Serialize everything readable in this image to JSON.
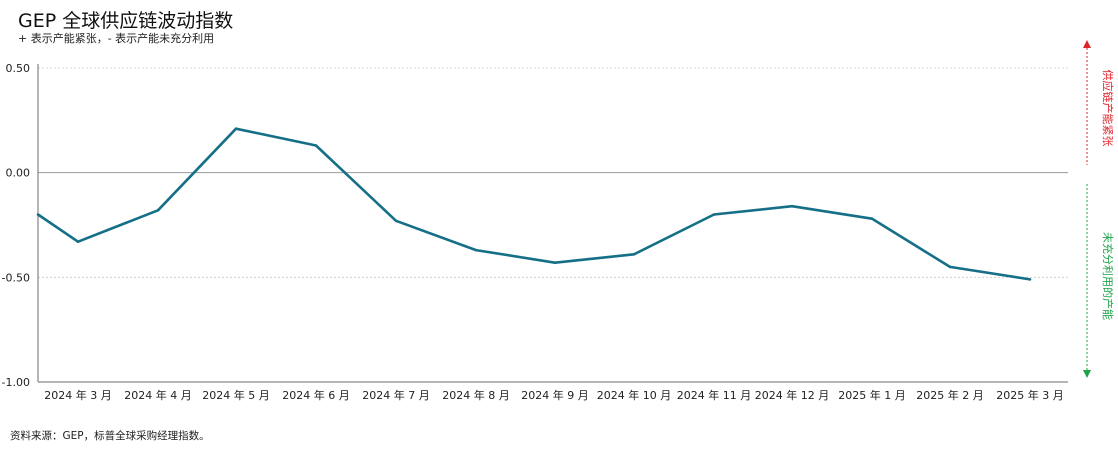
{
  "chart_data": {
    "type": "line",
    "title": "GEP 全球供应链波动指数",
    "subtitle": "+ 表示产能紧张，- 表示产能未充分利用",
    "categories": [
      "",
      "2024 年 3 月",
      "2024 年 4 月",
      "2024 年 5 月",
      "2024 年 6 月",
      "2024 年 7 月",
      "2024 年 8 月",
      "2024 年 9 月",
      "2024 年 10 月",
      "2024 年 11 月",
      "2024 年 12 月",
      "2025 年 1 月",
      "2025 年 2 月",
      "2025 年 3 月"
    ],
    "values": [
      -0.2,
      -0.33,
      -0.18,
      0.21,
      0.13,
      -0.23,
      -0.37,
      -0.43,
      -0.39,
      -0.2,
      -0.16,
      -0.22,
      -0.45,
      -0.51
    ],
    "ylim": [
      -1.0,
      0.5
    ],
    "yticks": [
      "0.50",
      "0.00",
      "-0.50",
      "-1.00"
    ],
    "ytick_values": [
      0.5,
      0.0,
      -0.5,
      -1.0
    ],
    "grid": true,
    "line_color": "#156f87",
    "up_label": "供应链产能紧张",
    "up_color": "#e0242b",
    "down_label": "未充分利用的产能",
    "down_color": "#1fa34a",
    "source": "资料来源：GEP，标普全球采购经理指数。"
  }
}
